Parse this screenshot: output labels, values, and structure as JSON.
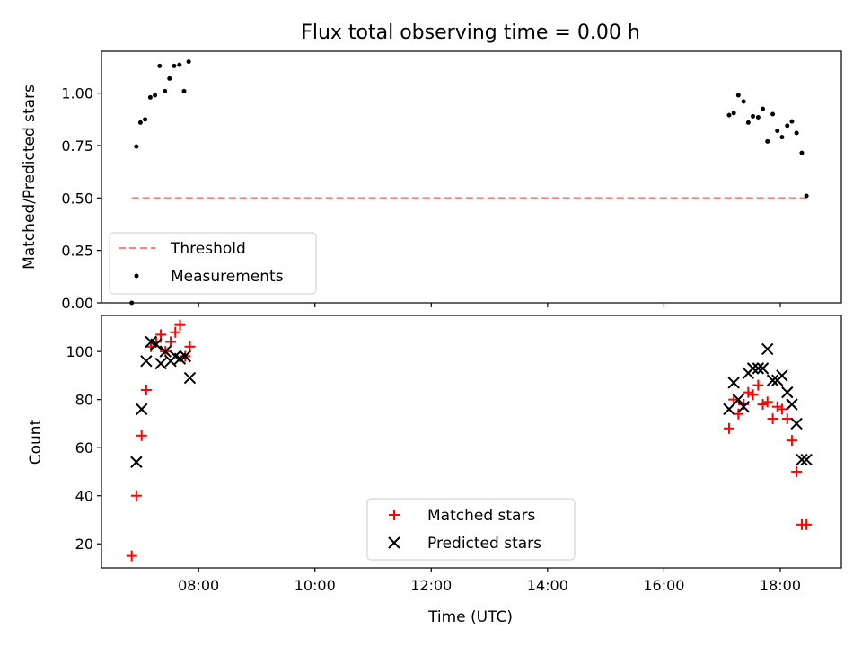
{
  "figure": {
    "title": "Flux total observing time = 0.00 h"
  },
  "chart_data": [
    {
      "type": "scatter",
      "ylabel": "Matched/Predicted stars",
      "xlim": [
        6.33,
        19.05
      ],
      "ylim": [
        0,
        1.2
      ],
      "yticks": [
        0.0,
        0.25,
        0.5,
        0.75,
        1.0
      ],
      "ytick_labels": [
        "0.00",
        "0.25",
        "0.50",
        "0.75",
        "1.00"
      ],
      "legend_position": "lower-left",
      "legend": [
        {
          "label": "Threshold",
          "style": "dashed-line",
          "color": "#ff7f7f"
        },
        {
          "label": "Measurements",
          "style": "dot",
          "color": "#000000"
        }
      ],
      "threshold": {
        "name": "Threshold",
        "value": 0.5,
        "x_range": [
          6.85,
          18.45
        ],
        "color": "#ff7f7f"
      },
      "series": [
        {
          "name": "Measurements",
          "color": "#000000",
          "x": [
            6.85,
            6.93,
            7.0,
            7.08,
            7.17,
            7.25,
            7.33,
            7.42,
            7.5,
            7.58,
            7.67,
            7.75,
            7.83,
            17.12,
            17.2,
            17.28,
            17.37,
            17.45,
            17.53,
            17.62,
            17.7,
            17.78,
            17.87,
            17.95,
            18.03,
            18.12,
            18.2,
            18.28,
            18.37,
            18.45
          ],
          "y": [
            0.0,
            0.745,
            0.86,
            0.875,
            0.98,
            0.99,
            1.13,
            1.01,
            1.07,
            1.13,
            1.135,
            1.01,
            1.15,
            0.895,
            0.905,
            0.99,
            0.96,
            0.86,
            0.89,
            0.885,
            0.925,
            0.77,
            0.9,
            0.82,
            0.79,
            0.845,
            0.865,
            0.81,
            0.715,
            0.51
          ]
        }
      ]
    },
    {
      "type": "scatter",
      "xlabel": "Time (UTC)",
      "ylabel": "Count",
      "xlim": [
        6.33,
        19.05
      ],
      "ylim": [
        10,
        115
      ],
      "yticks": [
        20,
        40,
        60,
        80,
        100
      ],
      "ytick_labels": [
        "20",
        "40",
        "60",
        "80",
        "100"
      ],
      "xticks": [
        8,
        10,
        12,
        14,
        16,
        18
      ],
      "xtick_labels": [
        "08:00",
        "10:00",
        "12:00",
        "14:00",
        "16:00",
        "18:00"
      ],
      "legend_position": "lower-center",
      "legend": [
        {
          "label": "Matched stars",
          "style": "plus",
          "color": "#ff0000"
        },
        {
          "label": "Predicted stars",
          "style": "x",
          "color": "#000000"
        }
      ],
      "series": [
        {
          "name": "Matched stars",
          "marker": "plus",
          "color": "#ff0000",
          "x": [
            6.85,
            6.93,
            7.02,
            7.1,
            7.18,
            7.27,
            7.35,
            7.43,
            7.52,
            7.6,
            7.68,
            7.77,
            7.85,
            17.12,
            17.2,
            17.28,
            17.37,
            17.45,
            17.53,
            17.62,
            17.7,
            17.78,
            17.87,
            17.95,
            18.03,
            18.12,
            18.2,
            18.28,
            18.37,
            18.45
          ],
          "y": [
            15,
            40,
            65,
            84,
            102,
            104,
            107,
            100,
            104,
            108,
            111,
            98,
            102,
            68,
            80,
            74,
            78,
            83,
            82,
            86,
            78,
            79,
            72,
            77,
            76,
            72,
            63,
            50,
            28,
            28
          ]
        },
        {
          "name": "Predicted stars",
          "marker": "x",
          "color": "#000000",
          "x": [
            6.93,
            7.02,
            7.1,
            7.18,
            7.27,
            7.35,
            7.43,
            7.52,
            7.6,
            7.68,
            7.77,
            7.85,
            17.12,
            17.2,
            17.28,
            17.37,
            17.45,
            17.53,
            17.62,
            17.7,
            17.78,
            17.87,
            17.95,
            18.03,
            18.12,
            18.2,
            18.28,
            18.37,
            18.45
          ],
          "y": [
            54,
            76,
            96,
            104,
            103,
            95,
            100,
            96,
            98,
            97,
            98,
            89,
            76,
            87,
            80,
            77,
            91,
            93,
            93,
            93,
            101,
            88,
            88,
            90,
            83,
            78,
            70,
            55,
            55
          ]
        }
      ]
    }
  ]
}
